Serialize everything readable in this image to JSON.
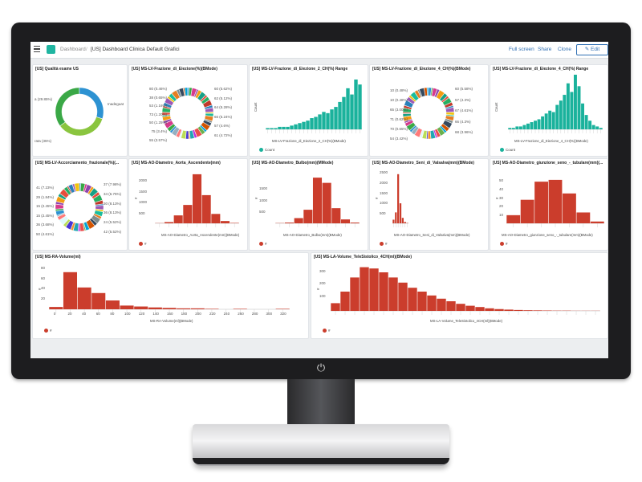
{
  "topbar": {
    "crumb_root": "Dashboard",
    "crumb_separator": "/",
    "crumb_current": "[US] Dashboard Clinica Default Grafici",
    "full_screen": "Full screen",
    "share": "Share",
    "clone": "Clone",
    "edit": "Edit"
  },
  "power_glyph": "⏻",
  "colors": {
    "teal": "#1ab29c",
    "red": "#cb3d2c",
    "blue": "#2d92d2",
    "green": "#3aa846"
  },
  "panels": {
    "p1": {
      "title": "[US] Qualità esame US",
      "labels": [
        "a (29.85%)",
        "Inadeguat",
        "rata (35%)"
      ]
    },
    "p2": {
      "title": "[US] MS-LV-Frazione_di_Eiezione(%)(BMode)",
      "labels_left": [
        "80 (0.46%)",
        "38 (0.65%)",
        "53 (1.16%)",
        "73 (1.20%)",
        "50 (1.25%)",
        "75 (3.4%)",
        "55 (3.57%)"
      ],
      "labels_right": [
        "60 (5.62%)",
        "62 (5.12%)",
        "64 (5.28%)",
        "66 (5.24%)",
        "57 (4.6%)",
        "61 (4.72%)"
      ]
    },
    "p3": {
      "title": "[US] MS-LV-Frazione_di_Eiezione_2_CH(%) Range",
      "ylabel": "Count",
      "xlabel": "MS-LV-Frazione_di_Eiezione_2_CH(%)(BMode)",
      "legend": "Count"
    },
    "p4": {
      "title": "[US] MS-LV-Frazione_di_Eiezione_4_CH(%)(BMode)",
      "labels_left": [
        "10 (0.48%)",
        "10 (0.48%)",
        "65 (3.00%)",
        "71 (0.62%)",
        "70 (0.65%)",
        "54 (3.42%)"
      ],
      "labels_right": [
        "60 (5.58%)",
        "57 (4.3%)",
        "67 (4.61%)",
        "66 (4.3%)",
        "68 (3.96%)"
      ]
    },
    "p5": {
      "title": "[US] MS-LV-Frazione_di_Eiezione_4_CH(%) Range",
      "ylabel": "Count",
      "xlabel": "MS-LV-Frazione_di_Eiezione_4_CH(%)(BMode)",
      "legend": "Count"
    },
    "p6": {
      "title": "[US] MS-LV-Accorciamento_frazionale(%)(...",
      "labels_left": [
        "41 (7.23%)",
        "29 (1.84%)",
        "15 (2.45%)",
        "15 (2.45%)",
        "36 (3.68%)",
        "50 (4.61%)"
      ],
      "labels_right": [
        "37 (7.98%)",
        "34 (6.75%)",
        "30 (8.13%)",
        "36 (8.13%)",
        "24 (5.52%)",
        "42 (5.52%)"
      ]
    },
    "p7": {
      "title": "[US] MS-AO-Diametro_Aorta_Ascendente(mm)",
      "ylabel": "#",
      "xlabel": "MS-AO-Diametro_Aorta_Ascendente(mm)(BMode)",
      "legend": "#",
      "ytick_labels": [
        "2000",
        "1500",
        "1000",
        "500"
      ]
    },
    "p8": {
      "title": "[US] MS-AO-Diametro_Bulbo(mm)(MMode)",
      "ylabel": "#",
      "xlabel": "MS-AO-Diametro_Bulbo(mm)(BMode)",
      "legend": "#",
      "ytick_labels": [
        "1500",
        "1000",
        "500"
      ]
    },
    "p9": {
      "title": "[US] MS-AO-Diametro_Seni_di_Valsalva(mm)(BMode)",
      "ylabel": "#",
      "xlabel": "MS-AO-Diametro_Seni_di_Valsalva(mm)(BMode)",
      "legend": "#",
      "ytick_labels": [
        "2500",
        "2000",
        "1500",
        "1000",
        "500"
      ]
    },
    "p10": {
      "title": "[US] MS-AO-Diametro_giunzione_seno_-_tubulare(mm)(...",
      "ylabel": "#",
      "xlabel": "MS-AO-Diametro_giunzione_seno_-_tubulare(mm)(BMode)",
      "legend": "#",
      "ytick_labels": [
        "50",
        "40",
        "30",
        "20",
        "10"
      ]
    },
    "p11": {
      "title": "[US] MS-RA-Volume(ml)",
      "ylabel": "#",
      "xlabel": "MS-RA-Volume(ml)(BMode)",
      "legend": "#",
      "ytick_labels": [
        "80",
        "60",
        "40",
        "20"
      ],
      "xtick_labels": [
        "0",
        "20",
        "40",
        "60",
        "80",
        "100",
        "120",
        "140",
        "160",
        "180",
        "200",
        "220",
        "240",
        "260",
        "280",
        "300",
        "320"
      ]
    },
    "p12": {
      "title": "[US] MS-LA-Volume_TeleSistolico_4CH(ml)(BMode)",
      "ylabel": "#",
      "xlabel": "MS-LA-Volume_TeleSistolico_4CH(ml)(BMode)",
      "legend": "#",
      "ytick_labels": [
        "300",
        "200",
        "100"
      ]
    }
  },
  "chart_data": [
    {
      "type": "pie",
      "title": "[US] Qualità esame US",
      "categories": [
        "a",
        "Inadeguat",
        "rata"
      ],
      "values": [
        29.85,
        35.15,
        35
      ]
    },
    {
      "type": "bar",
      "title": "[US] MS-LV-Frazione_di_Eiezione_2_CH(%) Range",
      "xlabel": "MS-LV-Frazione_di_Eiezione_2_CH(%)(BMode)",
      "ylabel": "Count",
      "values": [
        1,
        1,
        1,
        2,
        2,
        2,
        3,
        4,
        5,
        6,
        7,
        9,
        10,
        12,
        14,
        13,
        16,
        18,
        22,
        26,
        33,
        28,
        40,
        36
      ]
    },
    {
      "type": "bar",
      "title": "[US] MS-LV-Frazione_di_Eiezione_4_CH(%) Range",
      "xlabel": "MS-LV-Frazione_di_Eiezione_4_CH(%)(BMode)",
      "ylabel": "Count",
      "values": [
        1,
        1,
        2,
        2,
        3,
        4,
        5,
        6,
        7,
        9,
        11,
        13,
        12,
        17,
        20,
        24,
        32,
        26,
        38,
        30,
        18,
        10,
        6,
        3,
        2,
        1
      ]
    },
    {
      "type": "bar",
      "title": "[US] MS-AO-Diametro_Aorta_Ascendente(mm)",
      "xlabel": "MS-AO-Diametro_Aorta_Ascendente(mm)(BMode)",
      "ylabel": "#",
      "values": [
        10,
        60,
        380,
        880,
        2350,
        1350,
        450,
        110,
        20
      ],
      "ylim": [
        0,
        2500
      ]
    },
    {
      "type": "bar",
      "title": "[US] MS-AO-Diametro_Bulbo(mm)(MMode)",
      "xlabel": "MS-AO-Diametro_Bulbo(mm)(BMode)",
      "ylabel": "#",
      "values": [
        10,
        30,
        200,
        520,
        1750,
        1550,
        580,
        150,
        30
      ],
      "ylim": [
        0,
        2000
      ]
    },
    {
      "type": "bar",
      "title": "[US] MS-AO-Diametro_Seni_di_Valsalva(mm)(BMode)",
      "xlabel": "MS-AO-Diametro_Seni_di_Valsalva(mm)(BMode)",
      "ylabel": "#",
      "values": [
        200,
        600,
        2700,
        1100,
        300,
        80,
        20
      ],
      "ylim": [
        0,
        3000
      ]
    },
    {
      "type": "bar",
      "title": "[US] MS-AO-Diametro_giunzione_seno_-_tubulare(mm)(...",
      "xlabel": "MS-AO-Diametro_giunzione_seno_-_tubulare(mm)(BMode)",
      "ylabel": "#",
      "values": [
        9,
        26,
        46,
        48,
        33,
        12,
        2
      ],
      "ylim": [
        0,
        55
      ]
    },
    {
      "type": "bar",
      "title": "[US] MS-RA-Volume(ml)",
      "xlabel": "MS-RA-Volume(ml)(BMode)",
      "ylabel": "#",
      "categories": [
        "0",
        "20",
        "40",
        "60",
        "80",
        "100",
        "120",
        "140",
        "160",
        "180",
        "200",
        "220",
        "240",
        "260",
        "280",
        "300",
        "320"
      ],
      "values": [
        5,
        80,
        47,
        35,
        19,
        8,
        6,
        4,
        3,
        2,
        2,
        1,
        0,
        1,
        0,
        0,
        1
      ],
      "ylim": [
        0,
        90
      ]
    },
    {
      "type": "bar",
      "title": "[US] MS-LA-Volume_TeleSistolico_4CH(ml)(BMode)",
      "xlabel": "MS-LA-Volume_TeleSistolico_4CH(ml)(BMode)",
      "ylabel": "#",
      "values": [
        60,
        150,
        260,
        340,
        330,
        300,
        260,
        220,
        180,
        150,
        120,
        95,
        75,
        55,
        40,
        30,
        20,
        14,
        10,
        7,
        5,
        4,
        3,
        2,
        2,
        1,
        1,
        1
      ],
      "ylim": [
        0,
        350
      ]
    }
  ]
}
